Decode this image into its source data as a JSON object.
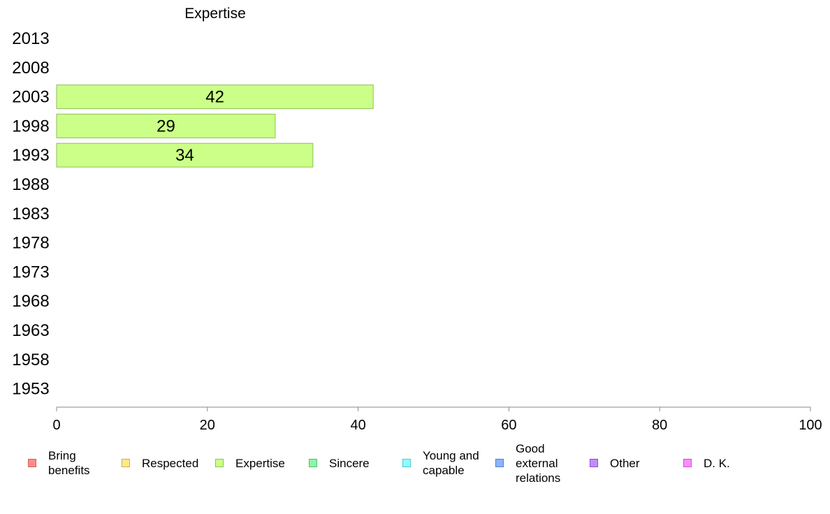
{
  "chart_data": {
    "type": "bar",
    "orientation": "horizontal",
    "title": "Expertise",
    "categories": [
      "2013",
      "2008",
      "2003",
      "1998",
      "1993",
      "1988",
      "1983",
      "1978",
      "1973",
      "1968",
      "1963",
      "1958",
      "1953"
    ],
    "series": [
      {
        "name": "Expertise",
        "color": "#ccff88",
        "stroke": "#8fbf5a",
        "values": [
          null,
          null,
          42,
          29,
          34,
          null,
          null,
          null,
          null,
          null,
          null,
          null,
          null
        ]
      }
    ],
    "xlim": [
      0,
      100
    ],
    "xticks": [
      0,
      20,
      40,
      60,
      80,
      100
    ],
    "tick_labels": [
      "0",
      "20",
      "40",
      "60",
      "80",
      "100"
    ],
    "data_labels": [
      "",
      "",
      "42",
      "29",
      "34",
      "",
      "",
      "",
      "",
      "",
      "",
      "",
      ""
    ],
    "grid": false,
    "legend_position": "bottom"
  },
  "legend": {
    "items": [
      {
        "label": "Bring\nbenefits",
        "color": "#ff8c8c",
        "stroke": "#d06060"
      },
      {
        "label": "Respected",
        "color": "#ffe98c",
        "stroke": "#c8b050"
      },
      {
        "label": "Expertise",
        "color": "#ccff88",
        "stroke": "#8fbf5a"
      },
      {
        "label": "Sincere",
        "color": "#8cf5a8",
        "stroke": "#50c070"
      },
      {
        "label": "Young and\ncapable",
        "color": "#8cffff",
        "stroke": "#50c8c8"
      },
      {
        "label": "Good\nexternal\nrelations",
        "color": "#8cb4ff",
        "stroke": "#5080d0"
      },
      {
        "label": "Other",
        "color": "#c08cff",
        "stroke": "#8c50d0"
      },
      {
        "label": "D. K.",
        "color": "#ff8cff",
        "stroke": "#d050d0"
      }
    ]
  }
}
